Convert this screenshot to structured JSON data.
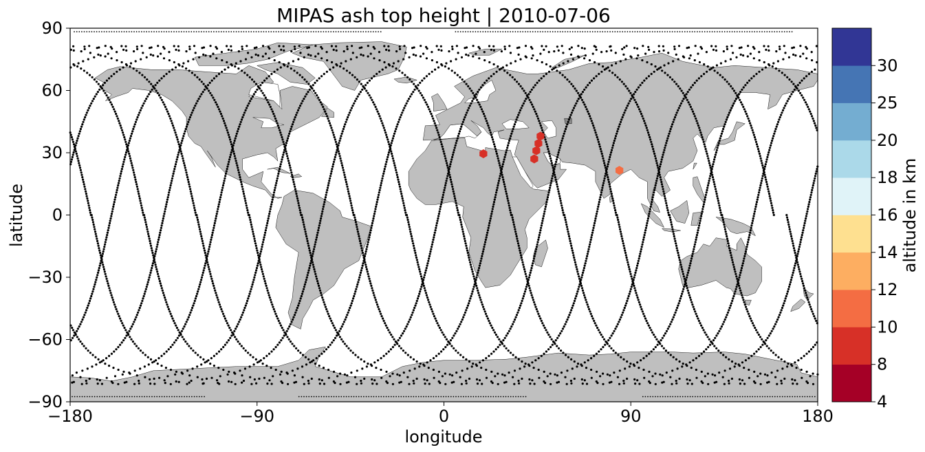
{
  "map": {
    "title": "MIPAS ash top height | 2010-07-06",
    "xlabel": "longitude",
    "ylabel": "latitude",
    "xlim": [
      -180,
      180
    ],
    "ylim": [
      -90,
      90
    ],
    "xticks": [
      -180,
      -90,
      0,
      90,
      180
    ],
    "yticks": [
      -90,
      -60,
      -30,
      0,
      30,
      60,
      90
    ],
    "xtick_labels": [
      "−180",
      "−90",
      "0",
      "90",
      "180"
    ],
    "ytick_labels": [
      "−90",
      "−60",
      "−30",
      "0",
      "30",
      "60",
      "90"
    ],
    "land_color": "#bfbfbf",
    "coast_color": "#000000",
    "ocean_color": "#ffffff"
  },
  "colorbar": {
    "label": "altitude in km",
    "boundaries": [
      4,
      8,
      10,
      12,
      14,
      16,
      18,
      20,
      25,
      30
    ],
    "tick_labels": [
      "4",
      "8",
      "10",
      "12",
      "14",
      "16",
      "18",
      "20",
      "25",
      "30"
    ],
    "colors": [
      "#a50026",
      "#d73027",
      "#f46d43",
      "#fdae61",
      "#fee090",
      "#e0f3f8",
      "#abd9e9",
      "#74add1",
      "#4575b4",
      "#313695"
    ]
  },
  "chart_data": {
    "type": "scatter",
    "title": "MIPAS ash top height | 2010-07-06",
    "xlabel": "longitude",
    "ylabel": "latitude",
    "xlim": [
      -180,
      180
    ],
    "ylim": [
      -90,
      90
    ],
    "colorbar_label": "altitude in km",
    "series": [
      {
        "points": [
          {
            "lon": 19,
            "lat": 29.5,
            "altitude_km": 9
          },
          {
            "lon": 46.5,
            "lat": 38,
            "altitude_km": 9
          },
          {
            "lon": 45.5,
            "lat": 34.5,
            "altitude_km": 9
          },
          {
            "lon": 44.5,
            "lat": 31,
            "altitude_km": 9
          },
          {
            "lon": 43.5,
            "lat": 27,
            "altitude_km": 9
          },
          {
            "lon": 84.5,
            "lat": 21.5,
            "altitude_km": 11
          }
        ]
      }
    ]
  }
}
